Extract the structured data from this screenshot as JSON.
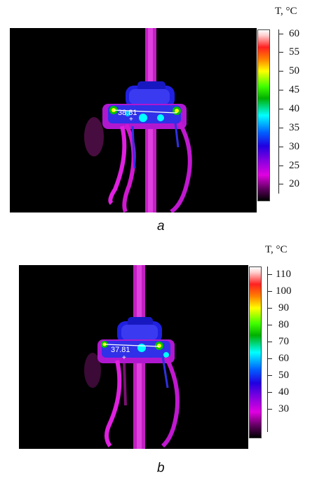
{
  "panels": [
    {
      "id": "a",
      "caption": "a",
      "unit_label": "T, °C",
      "reading": "38.81",
      "scale_ticks": [
        "60",
        "55",
        "50",
        "45",
        "40",
        "35",
        "30",
        "25",
        "20"
      ],
      "scale_values": [
        60,
        55,
        50,
        45,
        40,
        35,
        30,
        25,
        20
      ]
    },
    {
      "id": "b",
      "caption": "b",
      "unit_label": "T, °C",
      "reading": "37.81",
      "scale_ticks": [
        "110",
        "100",
        "90",
        "80",
        "70",
        "60",
        "50",
        "40",
        "30"
      ],
      "scale_values": [
        110,
        100,
        90,
        80,
        70,
        60,
        50,
        40,
        30
      ]
    }
  ],
  "colors": {
    "background": "#000000",
    "hot_white": "#ffffff",
    "hot_red": "#ff2020",
    "warm_yellow": "#ffff00",
    "mid_green": "#00c000",
    "mid_cyan": "#00ffff",
    "cool_blue": "#2020ff",
    "cool_magenta": "#e000e0",
    "cold_black": "#000000"
  }
}
